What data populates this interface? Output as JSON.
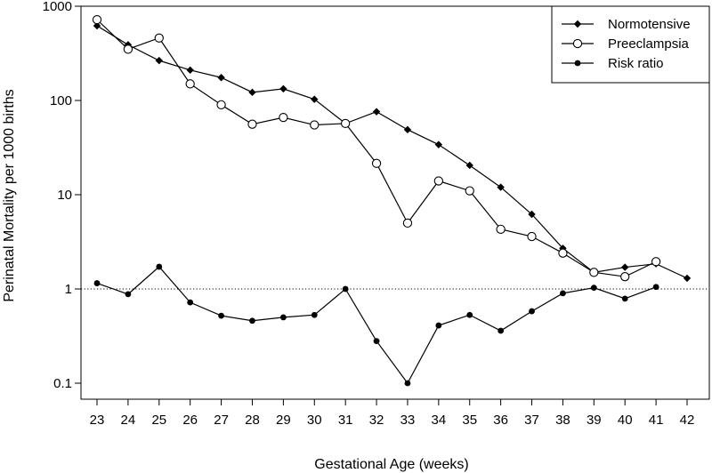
{
  "chart_data": {
    "type": "line",
    "xlabel": "Gestational Age (weeks)",
    "ylabel": "Perinatal Mortality per 1000 births",
    "y_scale": "log",
    "ylim": [
      0.1,
      1000
    ],
    "xlim": [
      23,
      42
    ],
    "x_ticks": [
      "23",
      "24",
      "25",
      "26",
      "27",
      "28",
      "29",
      "30",
      "31",
      "32",
      "33",
      "34",
      "35",
      "36",
      "37",
      "38",
      "39",
      "40",
      "41",
      "42"
    ],
    "y_ticks": [
      {
        "value": 0.1,
        "label": "0.1"
      },
      {
        "value": 1,
        "label": "1"
      },
      {
        "value": 10,
        "label": "10"
      },
      {
        "value": 100,
        "label": "100"
      },
      {
        "value": 1000,
        "label": "1000"
      }
    ],
    "reference_line": {
      "y": 1,
      "style": "dotted"
    },
    "legend_position": "top-right",
    "series": [
      {
        "name": "Normotensive",
        "marker": "filled-diamond",
        "x": [
          23,
          24,
          25,
          26,
          27,
          28,
          29,
          30,
          31,
          32,
          33,
          34,
          35,
          36,
          37,
          38,
          39,
          40,
          41,
          42
        ],
        "values": [
          620,
          390,
          265,
          210,
          175,
          122,
          133,
          103,
          57,
          76,
          49,
          34,
          20.5,
          12,
          6.2,
          2.7,
          1.5,
          1.7,
          1.85,
          1.3
        ]
      },
      {
        "name": "Preeclampsia",
        "marker": "open-circle",
        "x": [
          23,
          24,
          25,
          26,
          27,
          28,
          29,
          30,
          31,
          32,
          33,
          34,
          35,
          36,
          37,
          38,
          39,
          40,
          41
        ],
        "values": [
          720,
          350,
          460,
          150,
          90,
          56,
          66,
          55,
          57,
          21.5,
          5.0,
          14,
          11,
          4.3,
          3.6,
          2.4,
          1.5,
          1.35,
          1.95
        ]
      },
      {
        "name": "Risk ratio",
        "marker": "filled-circle",
        "x": [
          23,
          24,
          25,
          26,
          27,
          28,
          29,
          30,
          31,
          32,
          33,
          34,
          35,
          36,
          37,
          38,
          39,
          40,
          41
        ],
        "values": [
          1.15,
          0.88,
          1.72,
          0.72,
          0.52,
          0.46,
          0.5,
          0.53,
          1.0,
          0.28,
          0.1,
          0.41,
          0.53,
          0.36,
          0.58,
          0.9,
          1.03,
          0.79,
          1.05
        ]
      }
    ]
  }
}
